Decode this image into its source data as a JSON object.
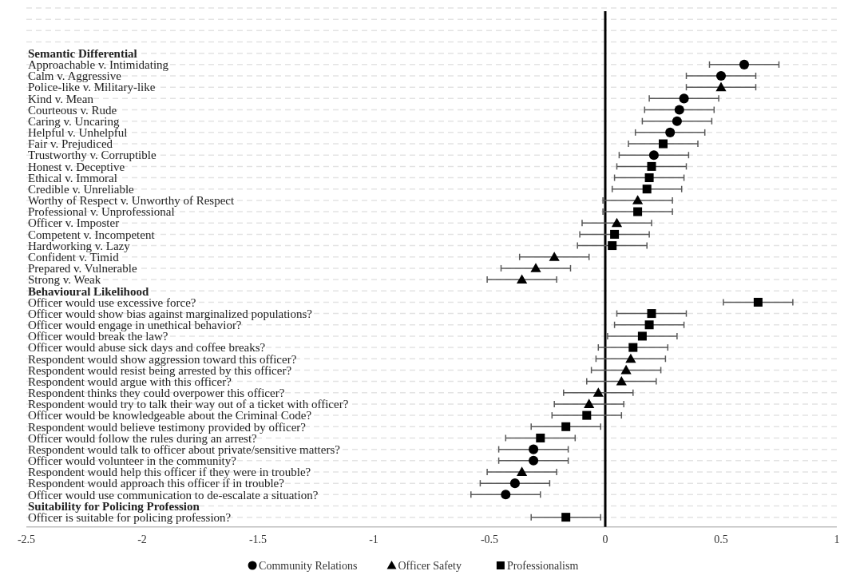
{
  "chart_data": {
    "type": "scatter",
    "orientation": "horizontal",
    "categories": [
      null,
      null,
      null,
      null,
      "Semantic Differential",
      "Approachable v. Intimidating",
      "Calm v. Aggressive",
      "Police-like v. Military-like",
      "Kind v. Mean",
      "Courteous v. Rude",
      "Caring v. Uncaring",
      "Helpful v. Unhelpful",
      "Fair v. Prejudiced",
      "Trustworthy v. Corruptible",
      "Honest v. Deceptive",
      "Ethical v. Immoral",
      "Credible v. Unreliable",
      "Worthy of Respect v. Unworthy of Respect",
      "Professional v. Unprofessional",
      "Officer v. Imposter",
      "Competent v. Incompetent",
      "Hardworking v. Lazy",
      "Confident v. Timid",
      "Prepared v. Vulnerable",
      "Strong v. Weak",
      "Behavioural Likelihood",
      "Officer would use excessive force?",
      "Officer would show bias against marginalized populations?",
      "Officer would engage in unethical behavior?",
      "Officer would break the law?",
      "Officer would abuse sick days and coffee breaks?",
      "Respondent would show aggression toward this officer?",
      "Respondent would resist being arrested by this officer?",
      "Respondent would argue with this officer?",
      "Respondent thinks they could overpower this officer?",
      "Respondent would try to talk their way out of a ticket with officer?",
      "Officer would be knowledgeable about the Criminal Code?",
      "Respondent would believe testimony provided by officer?",
      "Officer would follow the rules during an arrest?",
      "Respondent would talk to officer about private/sensitive matters?",
      "Officer would volunteer in the community?",
      "Respondent would help this officer if they were in trouble?",
      "Respondent would approach this officer if in trouble?",
      "Officer would use communication to de-escalate a situation?",
      "Suitability for Policing Profession",
      "Officer is suitable for policing profession?"
    ],
    "series": [
      {
        "name": "Community Relations",
        "color": "#000000",
        "marker": "circle",
        "values": [
          null,
          null,
          null,
          null,
          null,
          0.6,
          0.5,
          null,
          0.34,
          0.32,
          0.31,
          0.28,
          null,
          0.21,
          null,
          null,
          null,
          null,
          null,
          null,
          null,
          null,
          null,
          null,
          null,
          null,
          null,
          null,
          null,
          null,
          null,
          null,
          null,
          null,
          null,
          null,
          null,
          null,
          null,
          -0.31,
          -0.31,
          null,
          -0.39,
          -0.43,
          null,
          null
        ],
        "errors": [
          null,
          null,
          null,
          null,
          null,
          0.15,
          0.15,
          null,
          0.15,
          0.15,
          0.15,
          0.15,
          null,
          0.15,
          null,
          null,
          null,
          null,
          null,
          null,
          null,
          null,
          null,
          null,
          null,
          null,
          null,
          null,
          null,
          null,
          null,
          null,
          null,
          null,
          null,
          null,
          null,
          null,
          null,
          0.15,
          0.15,
          null,
          0.15,
          0.15,
          null,
          null
        ]
      },
      {
        "name": "Officer Safety",
        "color": "#000000",
        "marker": "triangle",
        "values": [
          null,
          null,
          null,
          null,
          null,
          null,
          null,
          0.5,
          null,
          null,
          null,
          null,
          null,
          null,
          null,
          null,
          null,
          0.14,
          null,
          0.05,
          null,
          null,
          -0.22,
          -0.3,
          -0.36,
          null,
          null,
          null,
          null,
          null,
          null,
          0.11,
          0.09,
          0.07,
          -0.03,
          -0.07,
          null,
          null,
          null,
          null,
          null,
          -0.36,
          null,
          null,
          null,
          null
        ],
        "errors": [
          null,
          null,
          null,
          null,
          null,
          null,
          null,
          0.15,
          null,
          null,
          null,
          null,
          null,
          null,
          null,
          null,
          null,
          0.15,
          null,
          0.15,
          null,
          null,
          0.15,
          0.15,
          0.15,
          null,
          null,
          null,
          null,
          null,
          null,
          0.15,
          0.15,
          0.15,
          0.15,
          0.15,
          null,
          null,
          null,
          null,
          null,
          0.15,
          null,
          null,
          null,
          null
        ]
      },
      {
        "name": "Professionalism",
        "color": "#000000",
        "marker": "square",
        "values": [
          null,
          null,
          null,
          null,
          null,
          null,
          null,
          null,
          null,
          null,
          null,
          null,
          0.25,
          null,
          0.2,
          0.19,
          0.18,
          null,
          0.14,
          null,
          0.04,
          0.03,
          null,
          null,
          null,
          null,
          0.66,
          0.2,
          0.19,
          0.16,
          0.12,
          null,
          null,
          null,
          null,
          null,
          -0.08,
          -0.17,
          -0.28,
          null,
          null,
          null,
          null,
          null,
          null,
          -0.17
        ],
        "errors": [
          null,
          null,
          null,
          null,
          null,
          null,
          null,
          null,
          null,
          null,
          null,
          null,
          0.15,
          null,
          0.15,
          0.15,
          0.15,
          null,
          0.15,
          null,
          0.15,
          0.15,
          null,
          null,
          null,
          null,
          0.15,
          0.15,
          0.15,
          0.15,
          0.15,
          null,
          null,
          null,
          null,
          null,
          0.15,
          0.15,
          0.15,
          null,
          null,
          null,
          null,
          null,
          null,
          0.15
        ]
      }
    ],
    "xlim": [
      -2.5,
      1
    ],
    "xticks": [
      -2.5,
      -2,
      -1.5,
      -1,
      -0.5,
      0,
      0.5,
      1
    ],
    "ref_lines": [
      {
        "axis": "x",
        "value": 0,
        "color": "#000000"
      }
    ],
    "grid": "y",
    "legend": "bottom"
  }
}
